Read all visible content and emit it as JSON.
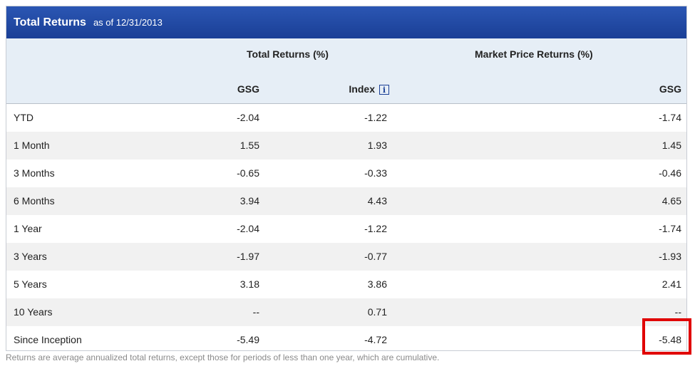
{
  "title": "Total Returns",
  "as_of": "as of 12/31/2013",
  "group_headers": {
    "total_returns": "Total Returns (%)",
    "market_price_returns": "Market Price Returns (%)"
  },
  "sub_headers": {
    "gsg": "GSG",
    "index": "Index",
    "market_gsg": "GSG"
  },
  "rows": [
    {
      "label": "YTD",
      "gsg": "-2.04",
      "index": "-1.22",
      "market": "-1.74"
    },
    {
      "label": "1 Month",
      "gsg": "1.55",
      "index": "1.93",
      "market": "1.45"
    },
    {
      "label": "3 Months",
      "gsg": "-0.65",
      "index": "-0.33",
      "market": "-0.46"
    },
    {
      "label": "6 Months",
      "gsg": "3.94",
      "index": "4.43",
      "market": "4.65"
    },
    {
      "label": "1 Year",
      "gsg": "-2.04",
      "index": "-1.22",
      "market": "-1.74"
    },
    {
      "label": "3 Years",
      "gsg": "-1.97",
      "index": "-0.77",
      "market": "-1.93"
    },
    {
      "label": "5 Years",
      "gsg": "3.18",
      "index": "3.86",
      "market": "2.41"
    },
    {
      "label": "10 Years",
      "gsg": "--",
      "index": "0.71",
      "market": "--"
    },
    {
      "label": "Since Inception",
      "gsg": "-5.49",
      "index": "-4.72",
      "market": "-5.48"
    }
  ],
  "footnote": "Returns are average annualized total returns, except those for periods of less than one year, which are cumulative.",
  "colors": {
    "titlebar": "#1a3f96",
    "header_bg": "#e6eef6",
    "alt_row": "#f1f1f1",
    "highlight": "#e00000"
  },
  "icons": {
    "index_info": "info-icon"
  }
}
